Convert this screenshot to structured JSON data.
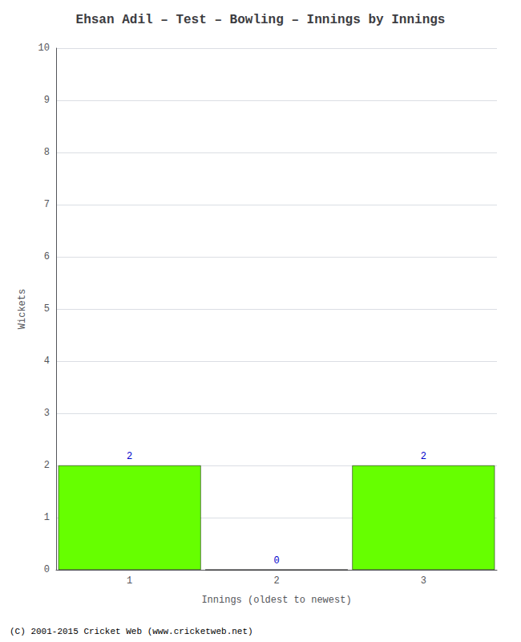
{
  "chart_data": {
    "type": "bar",
    "title": "Ehsan Adil – Test – Bowling – Innings by Innings",
    "xlabel": "Innings (oldest to newest)",
    "ylabel": "Wickets",
    "categories": [
      1,
      2,
      3
    ],
    "values": [
      2,
      0,
      2
    ],
    "color": "#66ff00",
    "ylim": [
      0,
      10
    ],
    "yticks": [
      0,
      1,
      2,
      3,
      4,
      5,
      6,
      7,
      8,
      9,
      10
    ],
    "grid": true,
    "data_labels": true,
    "annotations": [
      "(C) 2001-2015 Cricket Web (www.cricketweb.net)"
    ]
  }
}
